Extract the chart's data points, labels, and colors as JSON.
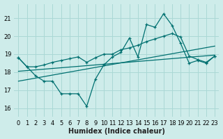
{
  "xlabel": "Humidex (Indice chaleur)",
  "background_color": "#ceecea",
  "grid_color": "#aad8d5",
  "line_color": "#007070",
  "xlim": [
    -0.5,
    23.5
  ],
  "ylim": [
    15.5,
    21.8
  ],
  "yticks": [
    16,
    17,
    18,
    19,
    20,
    21
  ],
  "xticks": [
    0,
    1,
    2,
    3,
    4,
    5,
    6,
    7,
    8,
    9,
    10,
    11,
    12,
    13,
    14,
    15,
    16,
    17,
    18,
    19,
    20,
    21,
    22,
    23
  ],
  "series1_y": [
    18.8,
    18.3,
    17.8,
    17.5,
    17.5,
    16.8,
    16.8,
    16.8,
    16.1,
    17.6,
    18.4,
    18.85,
    19.1,
    19.9,
    18.85,
    20.65,
    20.5,
    21.25,
    20.6,
    19.6,
    18.5,
    18.65,
    18.5,
    18.9
  ],
  "series2_y": [
    18.8,
    18.3,
    18.3,
    18.4,
    18.55,
    18.65,
    18.75,
    18.85,
    18.55,
    18.8,
    19.0,
    19.0,
    19.25,
    19.35,
    19.5,
    19.7,
    19.85,
    20.0,
    20.15,
    19.95,
    18.9,
    18.7,
    18.55,
    18.9
  ],
  "trend1_x": [
    0,
    23
  ],
  "trend1_y": [
    18.05,
    18.95
  ],
  "trend2_x": [
    0,
    23
  ],
  "trend2_y": [
    17.5,
    19.45
  ]
}
